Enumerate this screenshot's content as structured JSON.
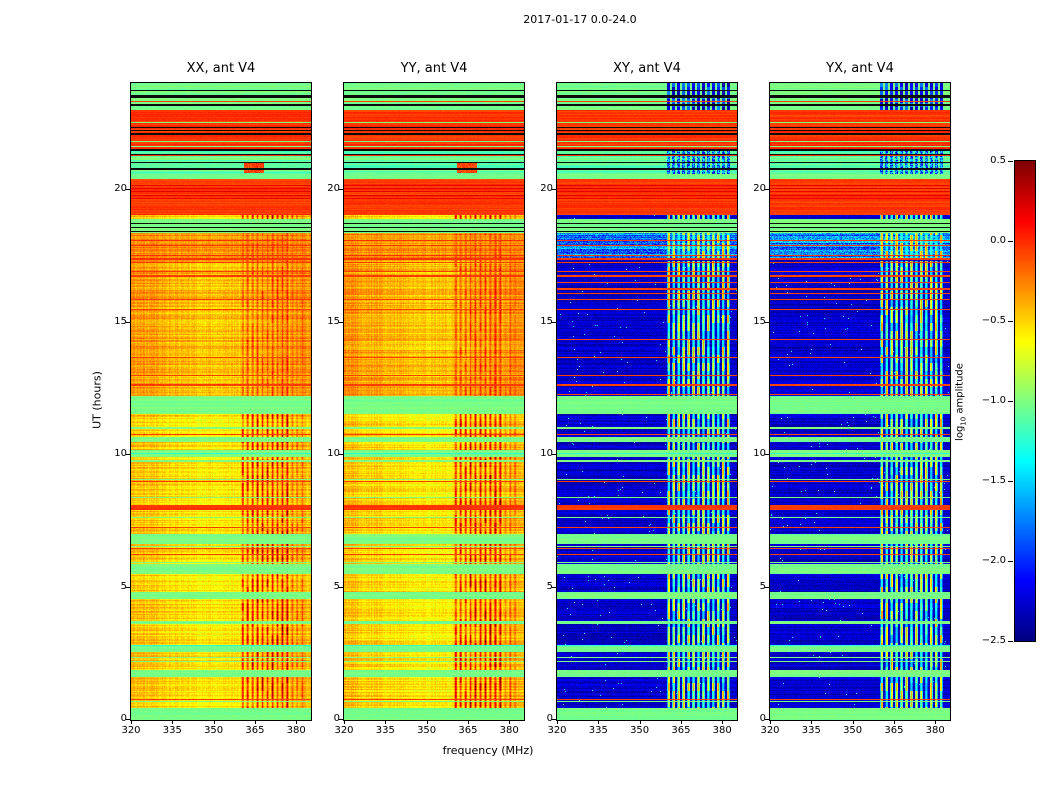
{
  "chart_data": {
    "type": "heatmap",
    "title": "2017-01-17 0.0-24.0",
    "xlabel": "frequency (MHz)",
    "ylabel": "UT (hours)",
    "x_range": [
      320,
      385
    ],
    "y_range": [
      0,
      24
    ],
    "x_ticks": [
      320,
      335,
      350,
      365,
      380
    ],
    "x_tick_labels": [
      "320",
      "335",
      "350",
      "365",
      "380"
    ],
    "y_ticks": [
      0,
      5,
      10,
      15,
      20
    ],
    "y_tick_labels": [
      "0",
      "5",
      "10",
      "15",
      "20"
    ],
    "panels": [
      {
        "title": "XX, ant V4",
        "kind": "auto"
      },
      {
        "title": "YY, ant V4",
        "kind": "auto"
      },
      {
        "title": "XY, ant V4",
        "kind": "cross"
      },
      {
        "title": "YX, ant V4",
        "kind": "cross"
      }
    ],
    "colorbar": {
      "label_prefix": "log",
      "label_sub": "10",
      "label_suffix": " amplitude",
      "colormap": "jet",
      "vmin": -2.5,
      "vmax": 0.5,
      "ticks": [
        0.5,
        0.0,
        -0.5,
        -1.0,
        -1.5,
        -2.0,
        -2.5
      ],
      "tick_labels": [
        "0.5",
        "0.0",
        "−0.5",
        "−1.0",
        "−1.5",
        "−2.0",
        "−2.5"
      ]
    },
    "time_bands": [
      {
        "t0": 0.0,
        "t1": 0.45,
        "type": "green"
      },
      {
        "t0": 0.45,
        "t1": 1.6,
        "type": "data"
      },
      {
        "t0": 1.6,
        "t1": 1.85,
        "type": "green"
      },
      {
        "t0": 1.85,
        "t1": 2.55,
        "type": "data"
      },
      {
        "t0": 2.55,
        "t1": 2.8,
        "type": "green"
      },
      {
        "t0": 2.8,
        "t1": 3.6,
        "type": "data"
      },
      {
        "t0": 3.6,
        "t1": 3.72,
        "type": "green"
      },
      {
        "t0": 3.72,
        "t1": 4.55,
        "type": "data"
      },
      {
        "t0": 4.55,
        "t1": 4.82,
        "type": "green"
      },
      {
        "t0": 4.82,
        "t1": 5.5,
        "type": "data"
      },
      {
        "t0": 5.5,
        "t1": 5.85,
        "type": "green"
      },
      {
        "t0": 5.85,
        "t1": 6.62,
        "type": "data"
      },
      {
        "t0": 6.62,
        "t1": 7.0,
        "type": "green"
      },
      {
        "t0": 7.0,
        "t1": 7.9,
        "type": "data"
      },
      {
        "t0": 7.9,
        "t1": 8.08,
        "type": "redline"
      },
      {
        "t0": 8.08,
        "t1": 9.9,
        "type": "data"
      },
      {
        "t0": 9.9,
        "t1": 10.18,
        "type": "green"
      },
      {
        "t0": 10.18,
        "t1": 10.48,
        "type": "data"
      },
      {
        "t0": 10.48,
        "t1": 10.62,
        "type": "green"
      },
      {
        "t0": 10.62,
        "t1": 11.52,
        "type": "data"
      },
      {
        "t0": 11.52,
        "t1": 12.22,
        "type": "green"
      },
      {
        "t0": 12.22,
        "t1": 17.3,
        "type": "data2"
      },
      {
        "t0": 17.3,
        "t1": 18.35,
        "type": "data3"
      },
      {
        "t0": 18.35,
        "t1": 18.9,
        "type": "green2"
      },
      {
        "t0": 18.9,
        "t1": 19.05,
        "type": "data"
      },
      {
        "t0": 19.05,
        "t1": 20.4,
        "type": "red"
      },
      {
        "t0": 20.4,
        "t1": 20.58,
        "type": "green"
      },
      {
        "t0": 20.58,
        "t1": 21.45,
        "type": "mixed"
      },
      {
        "t0": 21.45,
        "t1": 23.0,
        "type": "redblack"
      },
      {
        "t0": 23.0,
        "t1": 24.0,
        "type": "greenblack"
      }
    ],
    "rfi_region_start": 358.8,
    "rfi_stripes": [
      360.4,
      362.2,
      364.0,
      365.8,
      367.6,
      369.4,
      371.2,
      373.0,
      374.8,
      376.6,
      378.4,
      380.2,
      382.0
    ],
    "colors": {
      "background": "#ffffff",
      "frame": "#000000",
      "text": "#000000"
    }
  }
}
